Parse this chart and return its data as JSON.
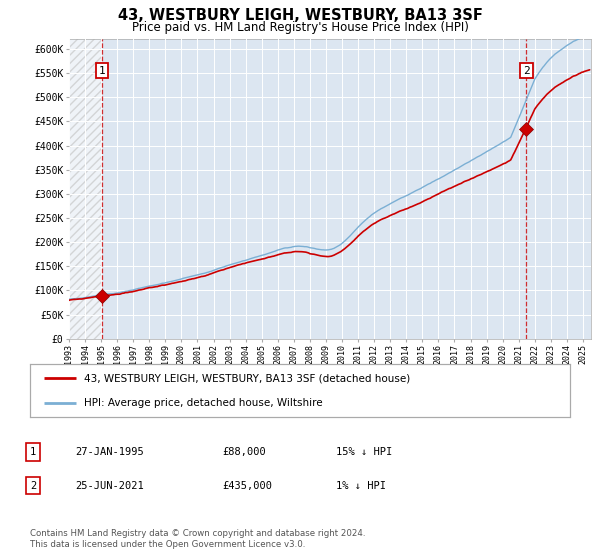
{
  "title": "43, WESTBURY LEIGH, WESTBURY, BA13 3SF",
  "subtitle": "Price paid vs. HM Land Registry's House Price Index (HPI)",
  "title_fontsize": 10.5,
  "subtitle_fontsize": 8.5,
  "ylabel_ticks": [
    "£0",
    "£50K",
    "£100K",
    "£150K",
    "£200K",
    "£250K",
    "£300K",
    "£350K",
    "£400K",
    "£450K",
    "£500K",
    "£550K",
    "£600K"
  ],
  "ytick_values": [
    0,
    50000,
    100000,
    150000,
    200000,
    250000,
    300000,
    350000,
    400000,
    450000,
    500000,
    550000,
    600000
  ],
  "ylim": [
    0,
    620000
  ],
  "hpi_color": "#7bafd4",
  "price_color": "#cc0000",
  "marker_color": "#cc0000",
  "background_color": "#dce6f1",
  "grid_color": "#ffffff",
  "sale1_x": 1995.07,
  "sale1_y": 88000,
  "sale2_x": 2021.48,
  "sale2_y": 435000,
  "legend_label1": "43, WESTBURY LEIGH, WESTBURY, BA13 3SF (detached house)",
  "legend_label2": "HPI: Average price, detached house, Wiltshire",
  "table_row1": [
    "1",
    "27-JAN-1995",
    "£88,000",
    "15% ↓ HPI"
  ],
  "table_row2": [
    "2",
    "25-JUN-2021",
    "£435,000",
    "1% ↓ HPI"
  ],
  "footnote": "Contains HM Land Registry data © Crown copyright and database right 2024.\nThis data is licensed under the Open Government Licence v3.0.",
  "xmin": 1993,
  "xmax": 2025.5
}
